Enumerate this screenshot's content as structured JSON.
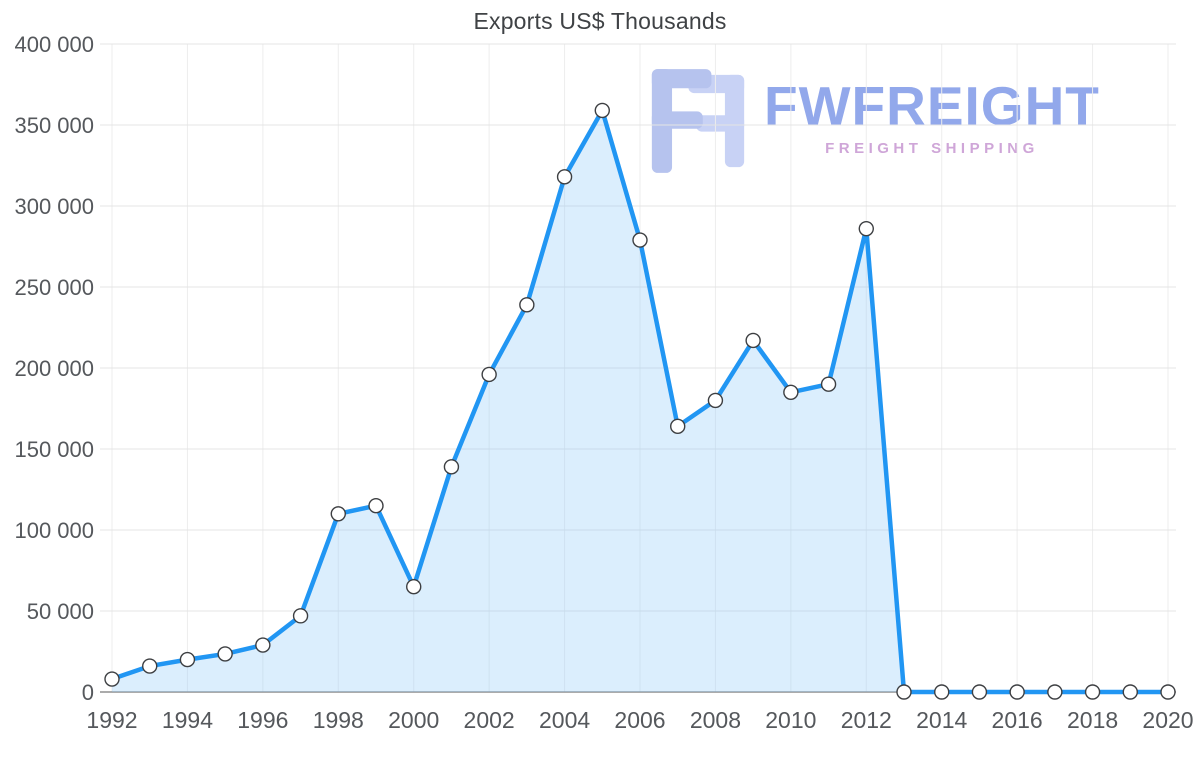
{
  "watermark": {
    "brand": "FWFREIGHT",
    "tagline": "FREIGHT SHIPPING",
    "brand_color": "#8da4ea",
    "tagline_color": "#cda2d6",
    "mark_color_front": "#b3c0ee",
    "mark_color_back": "#c6d0f5",
    "mark_icon": "fwfreight-logo-icon"
  },
  "chart_data": {
    "type": "area",
    "title": "Exports US$ Thousands",
    "series_name": "Exports",
    "x": [
      1992,
      1993,
      1994,
      1995,
      1996,
      1997,
      1998,
      1999,
      2000,
      2001,
      2002,
      2003,
      2004,
      2005,
      2006,
      2007,
      2008,
      2009,
      2010,
      2011,
      2012,
      2013,
      2014,
      2015,
      2016,
      2017,
      2018,
      2019,
      2020
    ],
    "values": [
      8000,
      16000,
      20000,
      23500,
      29000,
      47000,
      110000,
      115000,
      65000,
      139000,
      196000,
      239000,
      318000,
      359000,
      279000,
      164000,
      180000,
      217000,
      185000,
      190000,
      286000,
      0,
      0,
      0,
      0,
      0,
      0,
      0,
      0
    ],
    "xlabel": "",
    "ylabel": "",
    "ylim": [
      0,
      400000
    ],
    "xtick_values": [
      1992,
      1994,
      1996,
      1998,
      2000,
      2002,
      2004,
      2006,
      2008,
      2010,
      2012,
      2014,
      2016,
      2018,
      2020
    ],
    "ytick_values": [
      0,
      50000,
      100000,
      150000,
      200000,
      250000,
      300000,
      350000,
      400000
    ],
    "ytick_labels": [
      "0",
      "50 000",
      "100 000",
      "150 000",
      "200 000",
      "250 000",
      "300 000",
      "350 000",
      "400 000"
    ],
    "grid": true,
    "legend": "none",
    "line_color": "#2196f3",
    "fill_color": "rgba(144,202,249,0.32)",
    "marker_fill": "#ffffff",
    "marker_stroke": "#3d3f42",
    "axis_label_color": "#55585c",
    "gridline_color": "#e4e4e4",
    "zero_line_color": "#8f8f8f"
  }
}
